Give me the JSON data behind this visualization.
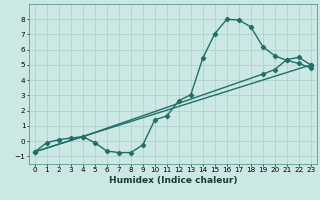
{
  "xlabel": "Humidex (Indice chaleur)",
  "xlim": [
    -0.5,
    23.5
  ],
  "ylim": [
    -1.5,
    9.0
  ],
  "xticks": [
    0,
    1,
    2,
    3,
    4,
    5,
    6,
    7,
    8,
    9,
    10,
    11,
    12,
    13,
    14,
    15,
    16,
    17,
    18,
    19,
    20,
    21,
    22,
    23
  ],
  "yticks": [
    -1,
    0,
    1,
    2,
    3,
    4,
    5,
    6,
    7,
    8
  ],
  "background_color": "#cce8e4",
  "grid_color": "#aaceca",
  "line_color": "#1e7068",
  "line1_x": [
    0,
    1,
    2,
    3,
    4,
    5,
    6,
    7,
    8,
    9,
    10,
    11,
    12,
    13,
    14,
    15,
    16,
    17,
    18,
    19,
    20,
    21,
    22,
    23
  ],
  "line1_y": [
    -0.7,
    -0.1,
    0.1,
    0.2,
    0.3,
    -0.1,
    -0.65,
    -0.75,
    -0.75,
    -0.25,
    1.4,
    1.65,
    2.65,
    3.05,
    5.45,
    7.05,
    8.0,
    7.95,
    7.5,
    6.2,
    5.6,
    5.3,
    5.1,
    4.8
  ],
  "line2_x": [
    0,
    4,
    23
  ],
  "line2_y": [
    -0.7,
    0.3,
    5.0
  ],
  "line3_x": [
    0,
    4,
    19,
    20,
    21,
    22,
    23
  ],
  "line3_y": [
    -0.7,
    0.3,
    4.4,
    4.7,
    5.35,
    5.5,
    5.0
  ],
  "marker": "D",
  "marker_size": 2.2,
  "line_width": 1.0,
  "tick_fontsize": 5.2,
  "label_fontsize": 6.5
}
